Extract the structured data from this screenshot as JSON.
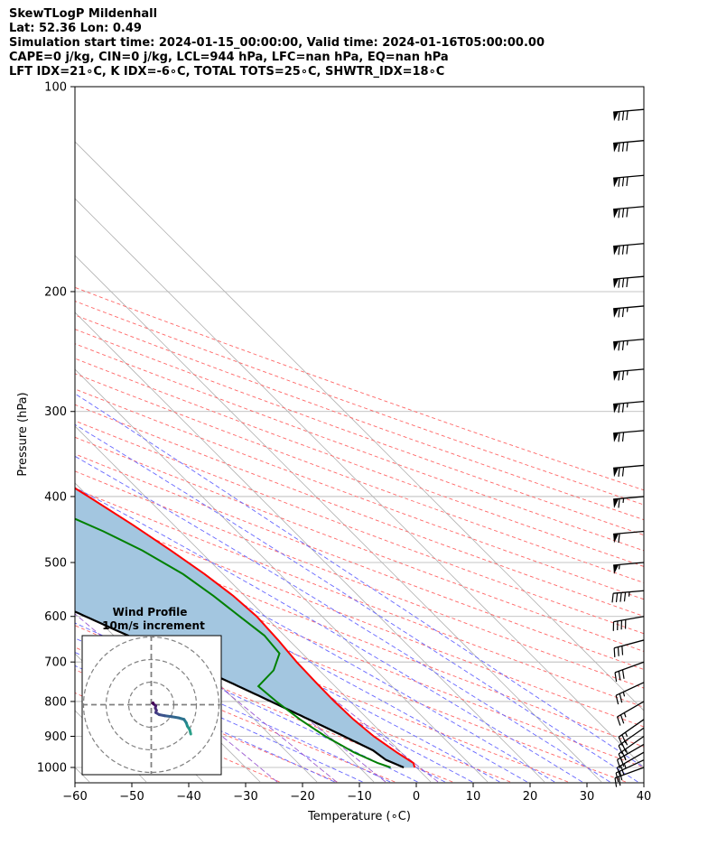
{
  "header": {
    "line1": "SkewTLogP Mildenhall",
    "line2": "Lat: 52.36   Lon: 0.49",
    "line3": "Simulation start time: 2024-01-15_00:00:00, Valid time: 2024-01-16T05:00:00.00",
    "line4": "CAPE=0 j/kg, CIN=0 j/kg, LCL=944 hPa, LFC=nan hPa, EQ=nan hPa",
    "line5": "LFT IDX=21∘C, K IDX=-6∘C, TOTAL TOTS=25∘C, SHWTR_IDX=18∘C"
  },
  "colors": {
    "temperature": "#ff0000",
    "dewpoint": "#008000",
    "parcel": "#000000",
    "cape_fill": "#a3c6e0",
    "dry_adiabat": "#ff6666",
    "moist_adiabat": "#6666ff",
    "mixing_ratio": "#9b59d0",
    "isotherm": "#b3b3b3"
  },
  "chart_data": {
    "type": "skew-t",
    "xlabel": "Temperature (∘C)",
    "ylabel": "Pressure (hPa)",
    "x_ticks": [
      -60,
      -50,
      -40,
      -30,
      -20,
      -10,
      0,
      10,
      20,
      30,
      40
    ],
    "y_ticks": [
      100,
      200,
      300,
      400,
      500,
      600,
      700,
      800,
      900,
      1000
    ],
    "xlim": [
      -60,
      40
    ],
    "ylim": [
      1050,
      100
    ],
    "y_scale": "log",
    "grid": true,
    "temperature": [
      {
        "p": 1000,
        "t": -0.3
      },
      {
        "p": 985,
        "t": 0.3
      },
      {
        "p": 950,
        "t": -0.8
      },
      {
        "p": 900,
        "t": -2.0
      },
      {
        "p": 850,
        "t": -2.6
      },
      {
        "p": 800,
        "t": -2.8
      },
      {
        "p": 750,
        "t": -2.7
      },
      {
        "p": 700,
        "t": -2.5
      },
      {
        "p": 650,
        "t": -1.9
      },
      {
        "p": 600,
        "t": -1.5
      },
      {
        "p": 560,
        "t": -2.0
      },
      {
        "p": 520,
        "t": -3.2
      },
      {
        "p": 480,
        "t": -5.0
      },
      {
        "p": 440,
        "t": -7.2
      },
      {
        "p": 400,
        "t": -10.0
      },
      {
        "p": 370,
        "t": -12.5
      },
      {
        "p": 340,
        "t": -14.3
      },
      {
        "p": 310,
        "t": -15.5
      },
      {
        "p": 280,
        "t": -16.2
      },
      {
        "p": 250,
        "t": -16.4
      },
      {
        "p": 220,
        "t": -16.0
      },
      {
        "p": 200,
        "t": -15.0
      },
      {
        "p": 180,
        "t": -13.0
      },
      {
        "p": 160,
        "t": -9.5
      },
      {
        "p": 140,
        "t": -5.5
      },
      {
        "p": 120,
        "t": 0.0
      },
      {
        "p": 100,
        "t": 6.5
      }
    ],
    "dewpoint": [
      {
        "p": 1000,
        "t": -4.5
      },
      {
        "p": 985,
        "t": -6.0
      },
      {
        "p": 950,
        "t": -8.3
      },
      {
        "p": 900,
        "t": -10.5
      },
      {
        "p": 850,
        "t": -12.0
      },
      {
        "p": 800,
        "t": -13.0
      },
      {
        "p": 760,
        "t": -13.5
      },
      {
        "p": 720,
        "t": -8.0
      },
      {
        "p": 680,
        "t": -4.0
      },
      {
        "p": 640,
        "t": -3.5
      },
      {
        "p": 600,
        "t": -4.5
      },
      {
        "p": 560,
        "t": -5.5
      },
      {
        "p": 520,
        "t": -7.0
      },
      {
        "p": 480,
        "t": -10.0
      },
      {
        "p": 450,
        "t": -13.5
      },
      {
        "p": 430,
        "t": -16.5
      },
      {
        "p": 410,
        "t": -19.8
      },
      {
        "p": 390,
        "t": -19.8
      },
      {
        "p": 370,
        "t": -20.3
      },
      {
        "p": 350,
        "t": -21.0
      },
      {
        "p": 320,
        "t": -23.0
      },
      {
        "p": 300,
        "t": -23.5
      },
      {
        "p": 270,
        "t": -23.0
      },
      {
        "p": 240,
        "t": -22.5
      },
      {
        "p": 210,
        "t": -21.5
      },
      {
        "p": 190,
        "t": -20.0
      },
      {
        "p": 170,
        "t": -19.6
      },
      {
        "p": 150,
        "t": -20.2
      },
      {
        "p": 140,
        "t": -20.0
      },
      {
        "p": 125,
        "t": -16.0
      },
      {
        "p": 110,
        "t": -11.5
      },
      {
        "p": 100,
        "t": -9.0
      }
    ],
    "parcel": [
      {
        "p": 1000,
        "t": -2.2
      },
      {
        "p": 975,
        "t": -4.0
      },
      {
        "p": 944,
        "t": -4.6
      }
    ],
    "parcel_moist_from_lcl_hpa": 944,
    "wind_barbs": [
      {
        "p": 1000,
        "dir": 250,
        "spd": 18
      },
      {
        "p": 975,
        "dir": 245,
        "spd": 22
      },
      {
        "p": 950,
        "dir": 240,
        "spd": 25
      },
      {
        "p": 925,
        "dir": 240,
        "spd": 25
      },
      {
        "p": 900,
        "dir": 235,
        "spd": 25
      },
      {
        "p": 875,
        "dir": 235,
        "spd": 25
      },
      {
        "p": 850,
        "dir": 235,
        "spd": 25
      },
      {
        "p": 800,
        "dir": 240,
        "spd": 25
      },
      {
        "p": 750,
        "dir": 245,
        "spd": 25
      },
      {
        "p": 700,
        "dir": 250,
        "spd": 30
      },
      {
        "p": 650,
        "dir": 255,
        "spd": 30
      },
      {
        "p": 600,
        "dir": 260,
        "spd": 40
      },
      {
        "p": 550,
        "dir": 265,
        "spd": 45
      },
      {
        "p": 500,
        "dir": 265,
        "spd": 55
      },
      {
        "p": 450,
        "dir": 265,
        "spd": 60
      },
      {
        "p": 400,
        "dir": 265,
        "spd": 65
      },
      {
        "p": 360,
        "dir": 265,
        "spd": 70
      },
      {
        "p": 320,
        "dir": 265,
        "spd": 70
      },
      {
        "p": 290,
        "dir": 265,
        "spd": 75
      },
      {
        "p": 260,
        "dir": 265,
        "spd": 75
      },
      {
        "p": 235,
        "dir": 265,
        "spd": 75
      },
      {
        "p": 210,
        "dir": 265,
        "spd": 75
      },
      {
        "p": 190,
        "dir": 265,
        "spd": 80
      },
      {
        "p": 170,
        "dir": 265,
        "spd": 80
      },
      {
        "p": 150,
        "dir": 265,
        "spd": 80
      },
      {
        "p": 135,
        "dir": 265,
        "spd": 80
      },
      {
        "p": 120,
        "dir": 265,
        "spd": 80
      },
      {
        "p": 108,
        "dir": 265,
        "spd": 80
      }
    ],
    "hodograph": {
      "title": "Wind Profile",
      "subtitle": "10m/s increment",
      "rings_ms": [
        10,
        20,
        30
      ],
      "points_ms": [
        {
          "u": 17.5,
          "v": -13.0
        },
        {
          "u": 17.0,
          "v": -11.0
        },
        {
          "u": 16.0,
          "v": -9.5
        },
        {
          "u": 15.5,
          "v": -8.0
        },
        {
          "u": 14.5,
          "v": -6.5
        },
        {
          "u": 12.0,
          "v": -5.8
        },
        {
          "u": 9.0,
          "v": -5.3
        },
        {
          "u": 6.0,
          "v": -4.9
        },
        {
          "u": 3.5,
          "v": -4.4
        },
        {
          "u": 2.0,
          "v": -3.5
        },
        {
          "u": 2.3,
          "v": -2.5
        },
        {
          "u": 1.8,
          "v": -1.5
        },
        {
          "u": 2.0,
          "v": -0.5
        },
        {
          "u": 1.0,
          "v": 0.3
        },
        {
          "u": 0.8,
          "v": 0.8
        },
        {
          "u": 0.6,
          "v": 0.6
        }
      ]
    }
  }
}
